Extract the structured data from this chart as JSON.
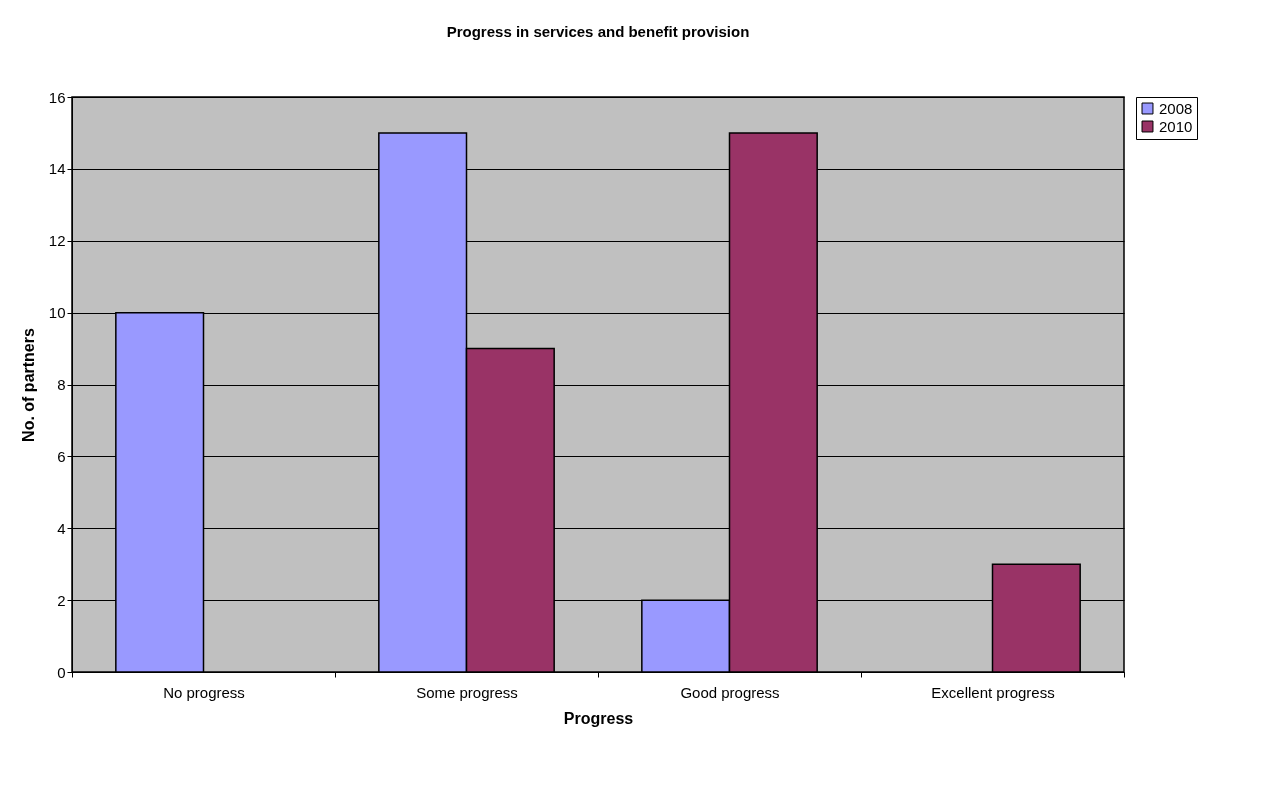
{
  "chart_data": {
    "type": "bar",
    "title": "Progress in services and benefit provision",
    "xlabel": "Progress",
    "ylabel": "No. of partners",
    "categories": [
      "No progress",
      "Some progress",
      "Good progress",
      "Excellent progress"
    ],
    "series": [
      {
        "name": "2008",
        "color": "#9999ff",
        "values": [
          10,
          15,
          2,
          null
        ]
      },
      {
        "name": "2010",
        "color": "#993366",
        "values": [
          null,
          9,
          15,
          3
        ]
      }
    ],
    "ylim": [
      0,
      16
    ],
    "yticks": [
      0,
      2,
      4,
      6,
      8,
      10,
      12,
      14,
      16
    ],
    "grid": "y",
    "legend": "right"
  }
}
